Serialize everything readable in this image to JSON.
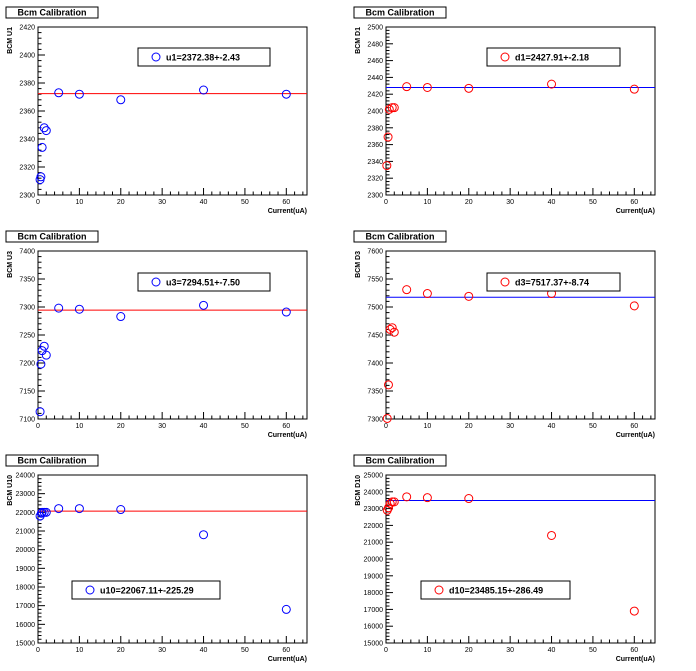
{
  "chart_data": [
    {
      "type": "scatter",
      "title": "Bcm Calibration",
      "xlabel": "Current(uA)",
      "ylabel": "BCM U1",
      "xlim": [
        0,
        65
      ],
      "ylim": [
        2300,
        2420
      ],
      "x_ticks": [
        0,
        10,
        20,
        30,
        40,
        50,
        60
      ],
      "y_ticks": [
        2300,
        2320,
        2340,
        2360,
        2380,
        2400,
        2420
      ],
      "series": [
        {
          "x": [
            0.5,
            0.7,
            1.0,
            1.5,
            2.0,
            5.0,
            10.0,
            20.0,
            40.0,
            60.0
          ],
          "y": [
            2311,
            2313,
            2334,
            2348,
            2346,
            2373,
            2372,
            2368,
            2375,
            2372
          ]
        }
      ],
      "fit": 2372.38,
      "legend": "u1=2372.38+-2.43",
      "legend_position": "top-right",
      "color": "#0000ff",
      "fit_color": "#ff0000",
      "grid": false
    },
    {
      "type": "scatter",
      "title": "Bcm Calibration",
      "xlabel": "Current(uA)",
      "ylabel": "BCM D1",
      "xlim": [
        0,
        65
      ],
      "ylim": [
        2300,
        2500
      ],
      "x_ticks": [
        0,
        10,
        20,
        30,
        40,
        50,
        60
      ],
      "y_ticks": [
        2300,
        2320,
        2340,
        2360,
        2380,
        2400,
        2420,
        2440,
        2460,
        2480,
        2500
      ],
      "series": [
        {
          "x": [
            0.2,
            0.5,
            0.8,
            1.5,
            2.0,
            5.0,
            10.0,
            20.0,
            40.0,
            60.0
          ],
          "y": [
            2335,
            2369,
            2402,
            2404,
            2404,
            2429,
            2428,
            2427,
            2432,
            2426
          ]
        }
      ],
      "fit": 2427.91,
      "legend": "d1=2427.91+-2.18",
      "legend_position": "top-right",
      "color": "#ff0000",
      "fit_color": "#0000ff",
      "grid": false
    },
    {
      "type": "scatter",
      "title": "Bcm Calibration",
      "xlabel": "Current(uA)",
      "ylabel": "BCM U3",
      "xlim": [
        0,
        65
      ],
      "ylim": [
        7100,
        7400
      ],
      "x_ticks": [
        0,
        10,
        20,
        30,
        40,
        50,
        60
      ],
      "y_ticks": [
        7100,
        7150,
        7200,
        7250,
        7300,
        7350,
        7400
      ],
      "series": [
        {
          "x": [
            0.5,
            0.7,
            1.0,
            1.5,
            2.0,
            5.0,
            10.0,
            20.0,
            40.0,
            60.0
          ],
          "y": [
            7113,
            7198,
            7222,
            7230,
            7214,
            7298,
            7296,
            7283,
            7303,
            7291
          ]
        }
      ],
      "fit": 7294.51,
      "legend": "u3=7294.51+-7.50",
      "legend_position": "top-right",
      "color": "#0000ff",
      "fit_color": "#ff0000",
      "grid": false
    },
    {
      "type": "scatter",
      "title": "Bcm Calibration",
      "xlabel": "Current(uA)",
      "ylabel": "BCM D3",
      "xlim": [
        0,
        65
      ],
      "ylim": [
        7300,
        7600
      ],
      "x_ticks": [
        0,
        10,
        20,
        30,
        40,
        50,
        60
      ],
      "y_ticks": [
        7300,
        7350,
        7400,
        7450,
        7500,
        7550,
        7600
      ],
      "series": [
        {
          "x": [
            0.3,
            0.6,
            1.0,
            1.5,
            2.0,
            5.0,
            10.0,
            20.0,
            40.0,
            60.0
          ],
          "y": [
            7301,
            7361,
            7460,
            7463,
            7455,
            7531,
            7524,
            7519,
            7524,
            7502
          ]
        }
      ],
      "fit": 7517.37,
      "legend": "d3=7517.37+-8.74",
      "legend_position": "top-right",
      "color": "#ff0000",
      "fit_color": "#0000ff",
      "grid": false
    },
    {
      "type": "scatter",
      "title": "Bcm Calibration",
      "xlabel": "Current(uA)",
      "ylabel": "BCM U10",
      "xlim": [
        0,
        65
      ],
      "ylim": [
        15000,
        24000
      ],
      "x_ticks": [
        0,
        10,
        20,
        30,
        40,
        50,
        60
      ],
      "y_ticks": [
        15000,
        16000,
        17000,
        18000,
        19000,
        20000,
        21000,
        22000,
        23000,
        24000
      ],
      "series": [
        {
          "x": [
            0.5,
            0.8,
            1.0,
            1.5,
            2.0,
            5.0,
            10.0,
            20.0,
            40.0,
            60.0
          ],
          "y": [
            21800,
            21950,
            22000,
            22000,
            22000,
            22200,
            22200,
            22150,
            20800,
            16800
          ]
        }
      ],
      "fit": 22067.11,
      "legend": "u10=22067.11+-225.29",
      "legend_position": "bottom-center",
      "color": "#0000ff",
      "fit_color": "#ff0000",
      "grid": false
    },
    {
      "type": "scatter",
      "title": "Bcm Calibration",
      "xlabel": "Current(uA)",
      "ylabel": "BCM D10",
      "xlim": [
        0,
        65
      ],
      "ylim": [
        15000,
        25000
      ],
      "x_ticks": [
        0,
        10,
        20,
        30,
        40,
        50,
        60
      ],
      "y_ticks": [
        15000,
        16000,
        17000,
        18000,
        19000,
        20000,
        21000,
        22000,
        23000,
        24000,
        25000
      ],
      "series": [
        {
          "x": [
            0.3,
            0.6,
            1.0,
            1.5,
            2.0,
            5.0,
            10.0,
            20.0,
            40.0,
            60.0
          ],
          "y": [
            22900,
            23050,
            23300,
            23400,
            23400,
            23700,
            23650,
            23600,
            21400,
            16900
          ]
        }
      ],
      "fit": 23485.15,
      "legend": "d10=23485.15+-286.49",
      "legend_position": "bottom-center",
      "color": "#ff0000",
      "fit_color": "#0000ff",
      "grid": false
    }
  ]
}
